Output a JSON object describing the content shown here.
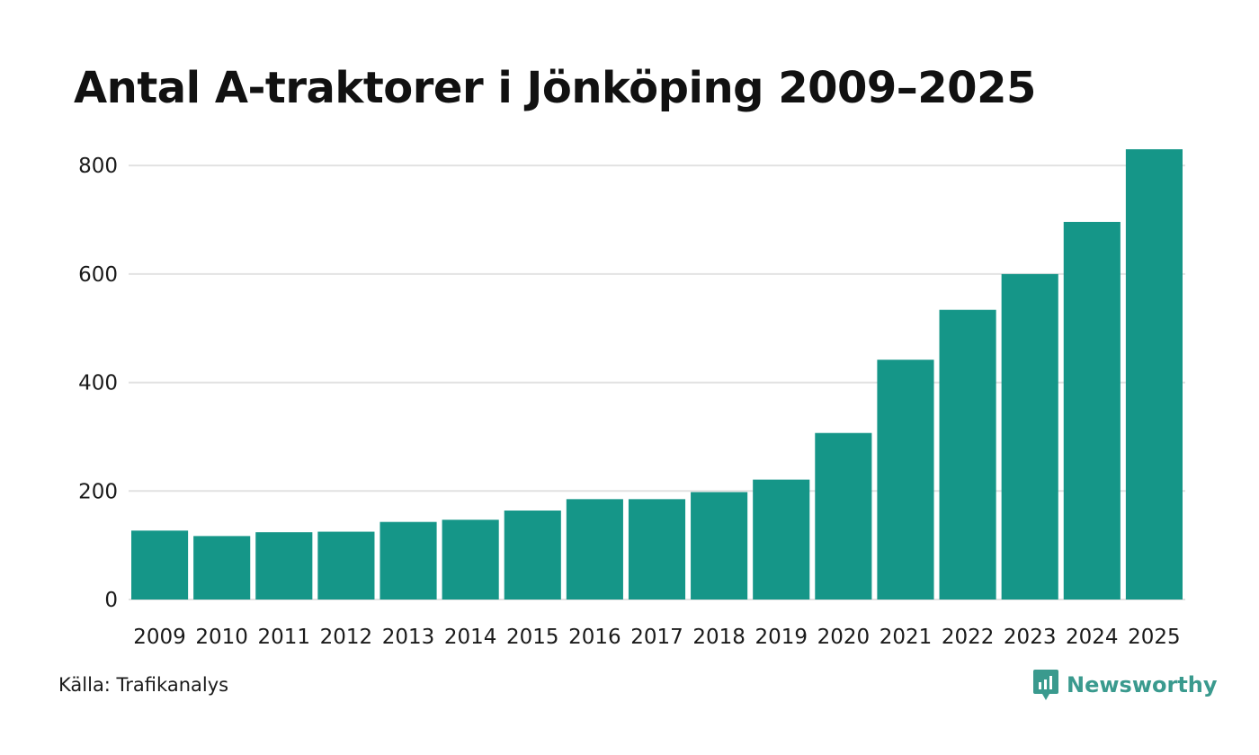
{
  "chart_data": {
    "type": "bar",
    "title": "Antal A-traktorer i Jönköping 2009–2025",
    "categories": [
      "2009",
      "2010",
      "2011",
      "2012",
      "2013",
      "2014",
      "2015",
      "2016",
      "2017",
      "2018",
      "2019",
      "2020",
      "2021",
      "2022",
      "2023",
      "2024",
      "2025"
    ],
    "values": [
      127,
      117,
      124,
      125,
      143,
      147,
      164,
      185,
      185,
      198,
      221,
      307,
      442,
      534,
      600,
      696,
      830
    ],
    "yticks": [
      "0",
      "200",
      "400",
      "600",
      "800"
    ],
    "ylim": [
      0,
      850
    ],
    "xlabel": "",
    "ylabel": "",
    "grid": true,
    "bar_color": "#159688",
    "grid_color": "#e2e2e2"
  },
  "source": "Källa: Trafikanalys",
  "brand": {
    "name": "Newsworthy",
    "icon": "newsworthy-logo-icon",
    "color": "#3a9a8e"
  }
}
